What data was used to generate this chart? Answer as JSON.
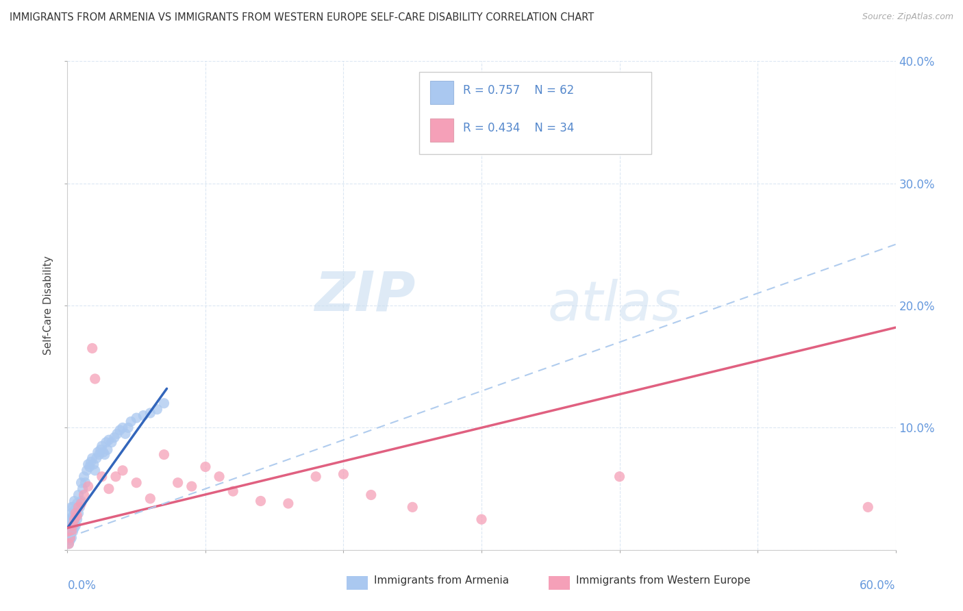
{
  "title": "IMMIGRANTS FROM ARMENIA VS IMMIGRANTS FROM WESTERN EUROPE SELF-CARE DISABILITY CORRELATION CHART",
  "source": "Source: ZipAtlas.com",
  "ylabel": "Self-Care Disability",
  "xlim": [
    0,
    0.6
  ],
  "ylim": [
    0,
    0.4
  ],
  "xticks": [
    0.0,
    0.1,
    0.2,
    0.3,
    0.4,
    0.5,
    0.6
  ],
  "yticks": [
    0.0,
    0.1,
    0.2,
    0.3,
    0.4
  ],
  "legend_R1": "R = 0.757",
  "legend_N1": "N = 62",
  "legend_R2": "R = 0.434",
  "legend_N2": "N = 34",
  "legend_label1": "Immigrants from Armenia",
  "legend_label2": "Immigrants from Western Europe",
  "color_blue": "#aac8f0",
  "color_pink": "#f5a0b8",
  "color_blue_line": "#3366bb",
  "color_pink_line": "#e06080",
  "color_blue_dashed": "#b0ccee",
  "watermark_zip": "ZIP",
  "watermark_atlas": "atlas",
  "scatter_armenia_x": [
    0.001,
    0.001,
    0.001,
    0.002,
    0.002,
    0.002,
    0.002,
    0.003,
    0.003,
    0.003,
    0.003,
    0.003,
    0.004,
    0.004,
    0.004,
    0.004,
    0.005,
    0.005,
    0.005,
    0.005,
    0.006,
    0.006,
    0.007,
    0.007,
    0.008,
    0.008,
    0.009,
    0.01,
    0.01,
    0.011,
    0.012,
    0.013,
    0.014,
    0.015,
    0.016,
    0.017,
    0.018,
    0.019,
    0.02,
    0.021,
    0.022,
    0.023,
    0.024,
    0.025,
    0.026,
    0.027,
    0.028,
    0.029,
    0.03,
    0.032,
    0.034,
    0.036,
    0.038,
    0.04,
    0.042,
    0.044,
    0.046,
    0.05,
    0.055,
    0.06,
    0.065,
    0.07
  ],
  "scatter_armenia_y": [
    0.005,
    0.01,
    0.015,
    0.008,
    0.012,
    0.02,
    0.025,
    0.01,
    0.018,
    0.025,
    0.03,
    0.035,
    0.015,
    0.022,
    0.028,
    0.035,
    0.018,
    0.025,
    0.032,
    0.04,
    0.02,
    0.03,
    0.025,
    0.038,
    0.03,
    0.045,
    0.035,
    0.04,
    0.055,
    0.05,
    0.06,
    0.055,
    0.065,
    0.07,
    0.068,
    0.072,
    0.075,
    0.07,
    0.065,
    0.075,
    0.08,
    0.078,
    0.082,
    0.085,
    0.08,
    0.078,
    0.088,
    0.082,
    0.09,
    0.088,
    0.092,
    0.095,
    0.098,
    0.1,
    0.095,
    0.1,
    0.105,
    0.108,
    0.11,
    0.112,
    0.115,
    0.12
  ],
  "scatter_we_x": [
    0.001,
    0.002,
    0.003,
    0.004,
    0.005,
    0.006,
    0.007,
    0.008,
    0.01,
    0.012,
    0.015,
    0.018,
    0.02,
    0.025,
    0.03,
    0.035,
    0.04,
    0.05,
    0.06,
    0.07,
    0.08,
    0.09,
    0.1,
    0.11,
    0.12,
    0.14,
    0.16,
    0.18,
    0.2,
    0.22,
    0.25,
    0.3,
    0.4,
    0.58
  ],
  "scatter_we_y": [
    0.005,
    0.01,
    0.015,
    0.02,
    0.025,
    0.03,
    0.028,
    0.035,
    0.038,
    0.045,
    0.052,
    0.165,
    0.14,
    0.06,
    0.05,
    0.06,
    0.065,
    0.055,
    0.042,
    0.078,
    0.055,
    0.052,
    0.068,
    0.06,
    0.048,
    0.04,
    0.038,
    0.06,
    0.062,
    0.045,
    0.035,
    0.025,
    0.06,
    0.035
  ],
  "armenia_trendline_x": [
    0.0,
    0.072
  ],
  "armenia_trendline_y": [
    0.018,
    0.132
  ],
  "we_trendline_x": [
    0.0,
    0.6
  ],
  "we_trendline_y": [
    0.018,
    0.182
  ],
  "dashed_trendline_x": [
    0.0,
    0.6
  ],
  "dashed_trendline_y": [
    0.01,
    0.25
  ]
}
